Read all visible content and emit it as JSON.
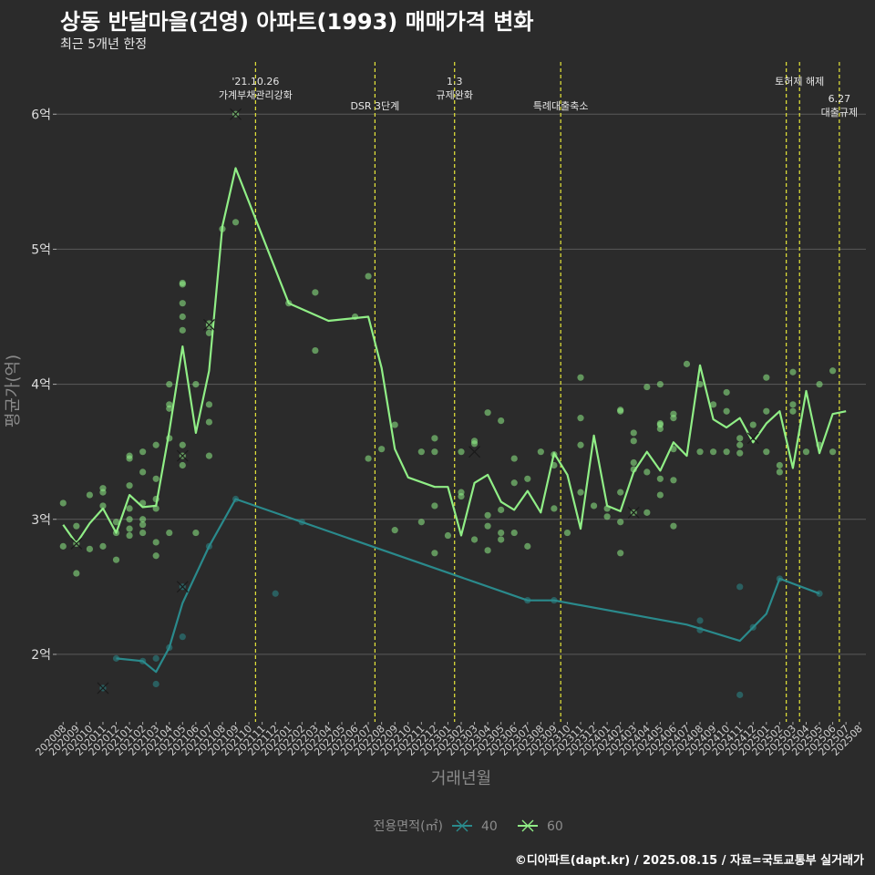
{
  "title": "상동 반달마을(건영) 아파트(1993) 매매가격 변화",
  "subtitle": "최근 5개년 한정",
  "caption": "©디아파트(dapt.kr) / 2025.08.15 / 자료=국토교통부 실거래가",
  "colors": {
    "background": "#2b2b2b",
    "grid": "#5a5a5a",
    "series_40": "#2a8a8c",
    "series_60": "#90ee86",
    "event_line": "#e8e83a"
  },
  "chart_data": {
    "type": "line",
    "xlabel": "거래년월",
    "ylabel": "평균가(억)",
    "ylim": [
      1.5,
      6.4
    ],
    "y_ticks": [
      {
        "value": 2,
        "label": "2억"
      },
      {
        "value": 3,
        "label": "3억"
      },
      {
        "value": 4,
        "label": "4억"
      },
      {
        "value": 5,
        "label": "5억"
      },
      {
        "value": 6,
        "label": "6억"
      }
    ],
    "categories": [
      "202008",
      "202009",
      "202010",
      "202011",
      "202012",
      "202101",
      "202102",
      "202103",
      "202104",
      "202105",
      "202106",
      "202107",
      "202108",
      "202109",
      "202110",
      "202111",
      "202112",
      "202201",
      "202202",
      "202203",
      "202204",
      "202205",
      "202206",
      "202207",
      "202208",
      "202209",
      "202210",
      "202211",
      "202212",
      "202301",
      "202302",
      "202303",
      "202304",
      "202305",
      "202306",
      "202307",
      "202308",
      "202309",
      "202310",
      "202311",
      "202312",
      "202401",
      "202402",
      "202403",
      "202404",
      "202405",
      "202406",
      "202407",
      "202408",
      "202409",
      "202410",
      "202411",
      "202412",
      "202501",
      "202502",
      "202503",
      "202504",
      "202505",
      "202506",
      "202507",
      "202508"
    ],
    "events": [
      {
        "x": 14.5,
        "labels": [
          "'21.10.26",
          "가계부채관리강화"
        ],
        "row": 0
      },
      {
        "x": 23.5,
        "labels": [
          "DSR 3단계"
        ],
        "row": 1
      },
      {
        "x": 29.5,
        "labels": [
          "1.3",
          "규제완화"
        ],
        "row": 0
      },
      {
        "x": 37.5,
        "labels": [
          "특례대출축소"
        ],
        "row": 1
      },
      {
        "x": 54.5,
        "labels": [],
        "row": 0
      },
      {
        "x": 55.5,
        "labels": [
          "토허제 해제"
        ],
        "row": 0
      },
      {
        "x": 58.5,
        "labels": [
          "6.27",
          "대출규제"
        ],
        "row": 2
      }
    ],
    "legend": {
      "title": "전용면적(㎡)",
      "entries": [
        "40",
        "60"
      ]
    },
    "series": [
      {
        "name": "40",
        "color": "#2a8a8c",
        "line": [
          [
            4,
            1.97
          ],
          [
            6,
            1.95
          ],
          [
            7,
            1.87
          ],
          [
            8,
            2.05
          ],
          [
            9,
            2.38
          ],
          [
            11,
            2.8
          ],
          [
            13,
            3.15
          ],
          [
            35,
            2.4
          ],
          [
            37,
            2.4
          ],
          [
            47,
            2.22
          ],
          [
            51,
            2.1
          ],
          [
            53,
            2.3
          ],
          [
            54,
            2.56
          ],
          [
            57,
            2.45
          ]
        ],
        "points": [
          [
            3,
            1.75
          ],
          [
            4,
            1.97
          ],
          [
            6,
            1.95
          ],
          [
            7,
            1.97
          ],
          [
            7,
            1.78
          ],
          [
            8,
            2.05
          ],
          [
            9,
            2.5
          ],
          [
            9,
            2.13
          ],
          [
            11,
            2.8
          ],
          [
            13,
            3.15
          ],
          [
            16,
            2.45
          ],
          [
            18,
            2.98
          ],
          [
            35,
            2.4
          ],
          [
            37,
            2.4
          ],
          [
            48,
            2.25
          ],
          [
            48,
            2.18
          ],
          [
            51,
            2.5
          ],
          [
            51,
            1.7
          ],
          [
            52,
            2.2
          ],
          [
            54,
            2.56
          ],
          [
            57,
            2.45
          ]
        ],
        "cross": [
          [
            3,
            1.75
          ],
          [
            9,
            2.5
          ]
        ]
      },
      {
        "name": "60",
        "color": "#90ee86",
        "line": [
          [
            0,
            2.96
          ],
          [
            1,
            2.82
          ],
          [
            2,
            2.97
          ],
          [
            3,
            3.08
          ],
          [
            4,
            2.9
          ],
          [
            5,
            3.18
          ],
          [
            6,
            3.09
          ],
          [
            7,
            3.1
          ],
          [
            8,
            3.65
          ],
          [
            9,
            4.28
          ],
          [
            10,
            3.64
          ],
          [
            11,
            4.1
          ],
          [
            12,
            5.17
          ],
          [
            13,
            5.6
          ],
          [
            17,
            4.6
          ],
          [
            20,
            4.47
          ],
          [
            23,
            4.5
          ],
          [
            24,
            4.12
          ],
          [
            25,
            3.52
          ],
          [
            26,
            3.31
          ],
          [
            28,
            3.24
          ],
          [
            29,
            3.24
          ],
          [
            30,
            2.88
          ],
          [
            31,
            3.27
          ],
          [
            32,
            3.33
          ],
          [
            33,
            3.13
          ],
          [
            34,
            3.07
          ],
          [
            35,
            3.21
          ],
          [
            36,
            3.05
          ],
          [
            37,
            3.49
          ],
          [
            38,
            3.33
          ],
          [
            39,
            2.93
          ],
          [
            40,
            3.62
          ],
          [
            41,
            3.1
          ],
          [
            42,
            3.06
          ],
          [
            43,
            3.35
          ],
          [
            44,
            3.5
          ],
          [
            45,
            3.36
          ],
          [
            46,
            3.57
          ],
          [
            47,
            3.47
          ],
          [
            48,
            4.14
          ],
          [
            49,
            3.74
          ],
          [
            50,
            3.68
          ],
          [
            51,
            3.75
          ],
          [
            52,
            3.57
          ],
          [
            53,
            3.71
          ],
          [
            54,
            3.8
          ],
          [
            55,
            3.38
          ],
          [
            56,
            3.95
          ],
          [
            57,
            3.49
          ],
          [
            58,
            3.78
          ],
          [
            59,
            3.8
          ]
        ],
        "points": [
          [
            0,
            3.12
          ],
          [
            0,
            2.8
          ],
          [
            1,
            2.95
          ],
          [
            1,
            2.82
          ],
          [
            1,
            2.6
          ],
          [
            2,
            3.18
          ],
          [
            2,
            2.78
          ],
          [
            3,
            3.23
          ],
          [
            3,
            3.2
          ],
          [
            3,
            3.1
          ],
          [
            3,
            2.8
          ],
          [
            4,
            2.98
          ],
          [
            4,
            2.9
          ],
          [
            4,
            2.7
          ],
          [
            5,
            3.47
          ],
          [
            5,
            3.45
          ],
          [
            5,
            3.25
          ],
          [
            5,
            3.08
          ],
          [
            5,
            3.0
          ],
          [
            5,
            2.93
          ],
          [
            5,
            2.88
          ],
          [
            6,
            3.5
          ],
          [
            6,
            3.35
          ],
          [
            6,
            3.12
          ],
          [
            6,
            3.0
          ],
          [
            6,
            2.96
          ],
          [
            6,
            2.9
          ],
          [
            7,
            3.55
          ],
          [
            7,
            3.3
          ],
          [
            7,
            3.15
          ],
          [
            7,
            3.08
          ],
          [
            7,
            2.83
          ],
          [
            7,
            2.73
          ],
          [
            8,
            4.0
          ],
          [
            8,
            3.85
          ],
          [
            8,
            3.82
          ],
          [
            8,
            3.6
          ],
          [
            8,
            2.9
          ],
          [
            9,
            4.75
          ],
          [
            9,
            4.74
          ],
          [
            9,
            4.6
          ],
          [
            9,
            4.5
          ],
          [
            9,
            4.4
          ],
          [
            9,
            3.55
          ],
          [
            9,
            3.47
          ],
          [
            9,
            3.4
          ],
          [
            10,
            4.0
          ],
          [
            10,
            2.9
          ],
          [
            11,
            4.45
          ],
          [
            11,
            4.43
          ],
          [
            11,
            4.38
          ],
          [
            11,
            3.85
          ],
          [
            11,
            3.72
          ],
          [
            11,
            3.47
          ],
          [
            12,
            5.15
          ],
          [
            13,
            6.0
          ],
          [
            13,
            5.2
          ],
          [
            17,
            4.6
          ],
          [
            19,
            4.68
          ],
          [
            19,
            4.25
          ],
          [
            22,
            4.5
          ],
          [
            23,
            4.8
          ],
          [
            23,
            3.45
          ],
          [
            24,
            3.52
          ],
          [
            25,
            3.7
          ],
          [
            25,
            2.92
          ],
          [
            27,
            3.5
          ],
          [
            27,
            2.98
          ],
          [
            28,
            3.6
          ],
          [
            28,
            3.5
          ],
          [
            28,
            3.1
          ],
          [
            28,
            2.75
          ],
          [
            29,
            2.88
          ],
          [
            30,
            3.5
          ],
          [
            30,
            3.2
          ],
          [
            30,
            3.17
          ],
          [
            31,
            3.58
          ],
          [
            31,
            3.56
          ],
          [
            31,
            2.85
          ],
          [
            32,
            3.79
          ],
          [
            32,
            3.03
          ],
          [
            32,
            2.95
          ],
          [
            32,
            2.77
          ],
          [
            33,
            3.73
          ],
          [
            33,
            3.07
          ],
          [
            33,
            2.9
          ],
          [
            33,
            2.85
          ],
          [
            34,
            3.45
          ],
          [
            34,
            3.27
          ],
          [
            34,
            2.9
          ],
          [
            35,
            3.3
          ],
          [
            35,
            2.8
          ],
          [
            36,
            3.5
          ],
          [
            37,
            3.48
          ],
          [
            37,
            3.4
          ],
          [
            37,
            3.08
          ],
          [
            38,
            2.9
          ],
          [
            39,
            4.05
          ],
          [
            39,
            3.75
          ],
          [
            39,
            3.55
          ],
          [
            39,
            3.2
          ],
          [
            40,
            3.1
          ],
          [
            41,
            3.08
          ],
          [
            41,
            3.02
          ],
          [
            42,
            3.81
          ],
          [
            42,
            3.8
          ],
          [
            42,
            3.2
          ],
          [
            42,
            2.98
          ],
          [
            42,
            2.75
          ],
          [
            43,
            3.64
          ],
          [
            43,
            3.58
          ],
          [
            43,
            3.42
          ],
          [
            43,
            3.37
          ],
          [
            43,
            3.05
          ],
          [
            44,
            3.98
          ],
          [
            44,
            3.35
          ],
          [
            44,
            3.05
          ],
          [
            45,
            4.0
          ],
          [
            45,
            3.71
          ],
          [
            45,
            3.7
          ],
          [
            45,
            3.67
          ],
          [
            45,
            3.3
          ],
          [
            45,
            3.18
          ],
          [
            46,
            3.78
          ],
          [
            46,
            3.75
          ],
          [
            46,
            3.52
          ],
          [
            46,
            3.29
          ],
          [
            46,
            2.95
          ],
          [
            47,
            4.15
          ],
          [
            48,
            4.0
          ],
          [
            48,
            3.5
          ],
          [
            49,
            3.85
          ],
          [
            49,
            3.5
          ],
          [
            50,
            3.94
          ],
          [
            50,
            3.8
          ],
          [
            50,
            3.5
          ],
          [
            51,
            3.6
          ],
          [
            51,
            3.55
          ],
          [
            51,
            3.49
          ],
          [
            52,
            3.7
          ],
          [
            53,
            4.05
          ],
          [
            53,
            3.8
          ],
          [
            53,
            3.5
          ],
          [
            54,
            3.4
          ],
          [
            54,
            3.35
          ],
          [
            55,
            4.09
          ],
          [
            55,
            3.85
          ],
          [
            55,
            3.8
          ],
          [
            56,
            3.5
          ],
          [
            57,
            4.0
          ],
          [
            57,
            3.55
          ],
          [
            58,
            4.1
          ],
          [
            58,
            3.5
          ]
        ],
        "cross": [
          [
            1,
            2.82
          ],
          [
            9,
            3.47
          ],
          [
            11,
            4.44
          ],
          [
            13,
            6.0
          ],
          [
            31,
            3.5
          ],
          [
            43,
            3.05
          ],
          [
            52,
            3.6
          ]
        ]
      }
    ]
  }
}
